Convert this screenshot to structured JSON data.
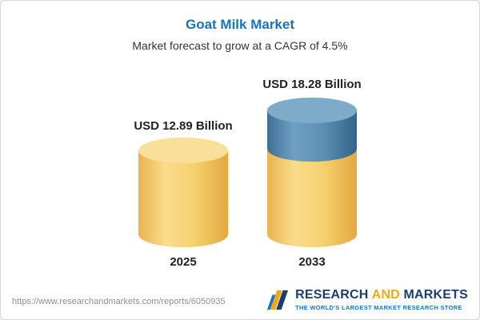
{
  "header": {
    "title": "Goat Milk Market",
    "subtitle": "Market forecast to grow at a CAGR of 4.5%"
  },
  "chart_data": {
    "type": "bar",
    "variant": "3d-cylinder",
    "categories": [
      "2025",
      "2033"
    ],
    "values": [
      12.89,
      18.28
    ],
    "unit": "USD Billion",
    "value_labels": [
      "USD 12.89 Billion",
      "USD 18.28 Billion"
    ],
    "title": "Goat Milk Market",
    "xlabel": "",
    "ylabel": "",
    "ylim": [
      0,
      20
    ],
    "gridlines": false,
    "legend": "none",
    "colors": {
      "base_segment": "#F5CE65",
      "growth_segment": "#4A7FA8",
      "title_accent": "#1A73B5"
    }
  },
  "footer": {
    "source_url": "https://www.researchandmarkets.com/reports/6050935",
    "brand": {
      "word1": "RESEARCH",
      "word2": "AND",
      "word3": "MARKETS",
      "tagline": "THE WORLD'S LARGEST MARKET RESEARCH STORE"
    }
  }
}
